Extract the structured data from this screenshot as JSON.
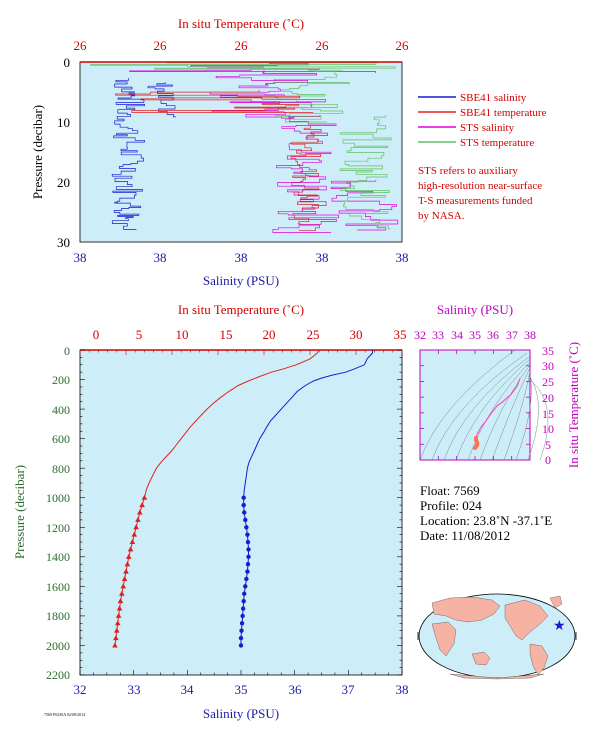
{
  "colors": {
    "plot_bg": "#cdeef8",
    "salinity": "#1a1ad0",
    "temperature": "#e02020",
    "sts_salinity": "#e000e0",
    "sts_temperature": "#60c060",
    "ts_curve": "#ff40c0",
    "ts_marker": "#ff7050"
  },
  "top_panel": {
    "top_axis_label": "In situ Temperature (˚C)",
    "bottom_axis_label": "Salinity (PSU)",
    "y_axis_label": "Pressure (decibar)",
    "top_ticks": [
      "26",
      "26",
      "26",
      "26",
      "26"
    ],
    "bottom_ticks": [
      "38",
      "38",
      "38",
      "38",
      "38"
    ],
    "y_ticks": [
      "0",
      "10",
      "20",
      "30"
    ],
    "legend": [
      {
        "label": "SBE41 salinity",
        "color": "#1a1ad0"
      },
      {
        "label": "SBE41 temperature",
        "color": "#e02020"
      },
      {
        "label": "STS salinity",
        "color": "#e000e0"
      },
      {
        "label": "STS temperature",
        "color": "#60c060"
      }
    ],
    "note_lines": [
      "STS refers to auxiliary",
      "high-resolution near-surface",
      "T-S measurements funded",
      "by NASA."
    ]
  },
  "main_panel": {
    "top_axis_label": "In situ Temperature (˚C)",
    "bottom_axis_label": "Salinity (PSU)",
    "y_axis_label": "Pressure (decibar)",
    "top_ticks": [
      "0",
      "5",
      "10",
      "15",
      "20",
      "25",
      "30",
      "35"
    ],
    "bottom_ticks": [
      "32",
      "33",
      "34",
      "35",
      "36",
      "37",
      "38"
    ],
    "y_ticks": [
      "0",
      "200",
      "400",
      "600",
      "800",
      "1000",
      "1200",
      "1400",
      "1600",
      "1800",
      "2000",
      "2200"
    ],
    "footer_code": "7569 P0230A 02/08/2014"
  },
  "ts_panel": {
    "top_axis_label": "Salinity (PSU)",
    "right_axis_label": "In situ Temperature (˚C)",
    "top_ticks": [
      "32",
      "33",
      "34",
      "35",
      "36",
      "37",
      "38"
    ],
    "right_ticks": [
      "0",
      "5",
      "10",
      "15",
      "20",
      "25",
      "30",
      "35"
    ]
  },
  "info": {
    "float": "Float:  7569",
    "profile": "Profile:  024",
    "location": "Location:  23.8˚N  -37.1˚E",
    "date": "Date:  11/08/2012"
  },
  "chart_data": [
    {
      "type": "line",
      "title": "",
      "xlabel": "Salinity (PSU)",
      "x2label": "In situ Temperature (˚C)",
      "ylabel": "Pressure (decibar)",
      "xlim": [
        32,
        38
      ],
      "x2lim": [
        0,
        35
      ],
      "ylim": [
        2200,
        0
      ],
      "series": [
        {
          "name": "Salinity",
          "axis": "salinity",
          "color": "#1a1ad0",
          "points": [
            [
              37.45,
              0
            ],
            [
              37.45,
              20
            ],
            [
              37.35,
              60
            ],
            [
              37.3,
              100
            ],
            [
              37.1,
              130
            ],
            [
              36.95,
              150
            ],
            [
              36.7,
              170
            ],
            [
              36.5,
              190
            ],
            [
              36.35,
              210
            ],
            [
              36.2,
              240
            ],
            [
              36.05,
              280
            ],
            [
              35.95,
              320
            ],
            [
              35.85,
              360
            ],
            [
              35.75,
              400
            ],
            [
              35.65,
              440
            ],
            [
              35.55,
              480
            ],
            [
              35.48,
              520
            ],
            [
              35.42,
              560
            ],
            [
              35.35,
              600
            ],
            [
              35.3,
              640
            ],
            [
              35.25,
              680
            ],
            [
              35.2,
              720
            ],
            [
              35.15,
              760
            ],
            [
              35.12,
              800
            ],
            [
              35.1,
              850
            ],
            [
              35.08,
              900
            ],
            [
              35.06,
              950
            ],
            [
              35.05,
              1000
            ],
            [
              35.05,
              1050
            ],
            [
              35.06,
              1100
            ],
            [
              35.08,
              1150
            ],
            [
              35.1,
              1200
            ],
            [
              35.12,
              1250
            ],
            [
              35.13,
              1300
            ],
            [
              35.14,
              1350
            ],
            [
              35.14,
              1400
            ],
            [
              35.13,
              1450
            ],
            [
              35.12,
              1500
            ],
            [
              35.1,
              1550
            ],
            [
              35.08,
              1600
            ],
            [
              35.06,
              1650
            ],
            [
              35.05,
              1700
            ],
            [
              35.04,
              1750
            ],
            [
              35.03,
              1800
            ],
            [
              35.02,
              1850
            ],
            [
              35.01,
              1900
            ],
            [
              35.0,
              1950
            ],
            [
              35.0,
              2000
            ]
          ],
          "markers_from_pressure": 1000
        },
        {
          "name": "Temperature",
          "axis": "temperature",
          "color": "#e02020",
          "points": [
            [
              25.9,
              0
            ],
            [
              25.8,
              20
            ],
            [
              25.0,
              60
            ],
            [
              23.5,
              100
            ],
            [
              22.0,
              130
            ],
            [
              20.8,
              150
            ],
            [
              19.5,
              180
            ],
            [
              18.3,
              210
            ],
            [
              17.2,
              240
            ],
            [
              16.2,
              280
            ],
            [
              15.3,
              320
            ],
            [
              14.5,
              360
            ],
            [
              13.8,
              400
            ],
            [
              13.2,
              440
            ],
            [
              12.6,
              480
            ],
            [
              12.0,
              520
            ],
            [
              11.5,
              560
            ],
            [
              11.0,
              600
            ],
            [
              10.5,
              640
            ],
            [
              10.0,
              680
            ],
            [
              9.4,
              720
            ],
            [
              8.8,
              760
            ],
            [
              8.3,
              800
            ],
            [
              7.9,
              850
            ],
            [
              7.5,
              900
            ],
            [
              7.2,
              950
            ],
            [
              7.0,
              1000
            ],
            [
              6.75,
              1050
            ],
            [
              6.5,
              1100
            ],
            [
              6.3,
              1150
            ],
            [
              6.1,
              1200
            ],
            [
              5.9,
              1250
            ],
            [
              5.7,
              1300
            ],
            [
              5.5,
              1350
            ],
            [
              5.3,
              1400
            ],
            [
              5.15,
              1450
            ],
            [
              5.0,
              1500
            ],
            [
              4.85,
              1550
            ],
            [
              4.7,
              1600
            ],
            [
              4.55,
              1650
            ],
            [
              4.4,
              1700
            ],
            [
              4.3,
              1750
            ],
            [
              4.2,
              1800
            ],
            [
              4.1,
              1850
            ],
            [
              4.0,
              1900
            ],
            [
              3.9,
              1950
            ],
            [
              3.8,
              2000
            ]
          ],
          "markers_from_pressure": 1000
        }
      ]
    },
    {
      "type": "line",
      "title": "",
      "xlabel": "Salinity (PSU)",
      "ylabel": "In situ Temperature (˚C)",
      "xlim": [
        32,
        38
      ],
      "ylim": [
        0,
        35
      ],
      "series": [
        {
          "color": "#ff40c0",
          "points": [
            [
              37.45,
              25.9
            ],
            [
              37.3,
              23.5
            ],
            [
              36.95,
              20.8
            ],
            [
              36.5,
              18.5
            ],
            [
              36.2,
              17.2
            ],
            [
              35.95,
              15.3
            ],
            [
              35.75,
              13.8
            ],
            [
              35.55,
              12.0
            ],
            [
              35.42,
              11.2
            ],
            [
              35.3,
              10.2
            ],
            [
              35.2,
              9.0
            ],
            [
              35.12,
              8.3
            ],
            [
              35.08,
              7.5
            ],
            [
              35.05,
              7.0
            ],
            [
              35.06,
              6.3
            ],
            [
              35.1,
              5.8
            ],
            [
              35.13,
              5.3
            ],
            [
              35.12,
              4.8
            ],
            [
              35.08,
              4.4
            ],
            [
              35.03,
              4.1
            ],
            [
              35.0,
              3.8
            ]
          ]
        }
      ]
    }
  ]
}
